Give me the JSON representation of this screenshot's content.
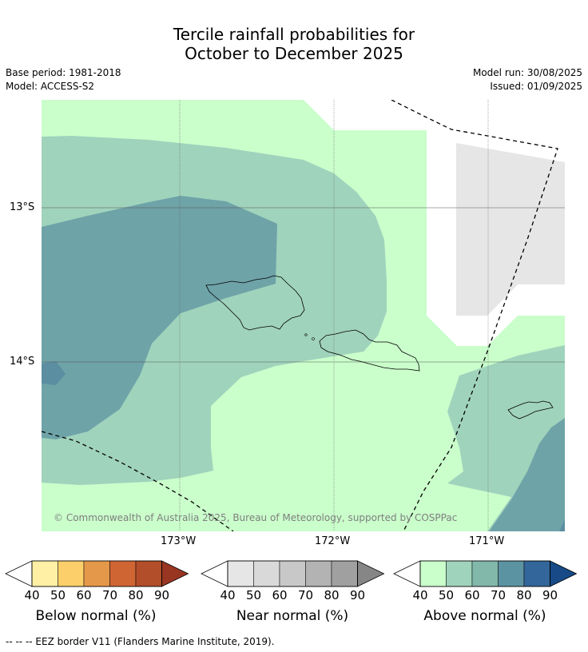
{
  "title_line1": "Tercile rainfall probabilities for",
  "title_line2": "October to December 2025",
  "base_period": "Base period: 1981-2018",
  "model": "Model: ACCESS-S2",
  "model_run": "Model run: 30/08/2025",
  "issued": "Issued: 01/09/2025",
  "latitude_labels": [
    "13°S",
    "14°S"
  ],
  "longitude_labels": [
    "173°W",
    "172°W",
    "171°W"
  ],
  "credit": "© Commonwealth of Australia 2025, Bureau of Meteorology, supported by COSPPac",
  "colorbars": [
    {
      "label": "Below normal (%)",
      "ticks": [
        "40",
        "50",
        "60",
        "70",
        "80",
        "90"
      ],
      "colors": [
        "#fff0a6",
        "#fdcf6a",
        "#e4984a",
        "#d06534",
        "#b24e2a",
        "#983622"
      ]
    },
    {
      "label": "Near normal (%)",
      "ticks": [
        "40",
        "50",
        "60",
        "70",
        "80",
        "90"
      ],
      "colors": [
        "#e6e6e6",
        "#d9d9d9",
        "#c8c8c8",
        "#b3b3b3",
        "#a0a0a0",
        "#868686"
      ]
    },
    {
      "label": "Above normal (%)",
      "ticks": [
        "40",
        "50",
        "60",
        "70",
        "80",
        "90"
      ],
      "colors": [
        "#cafecb",
        "#a0d3bc",
        "#82b8aa",
        "#5c93a2",
        "#33669a",
        "#174a86"
      ]
    }
  ],
  "footnote": "-- -- -- EEZ border V11 (Flanders Marine Institute, 2019).",
  "colors": {
    "above_40": "#cafecb",
    "above_50": "#a0d3bc",
    "above_60": "#6ea3a8",
    "above_70": "#5b8ea0",
    "near_40": "#e6e6e6"
  }
}
